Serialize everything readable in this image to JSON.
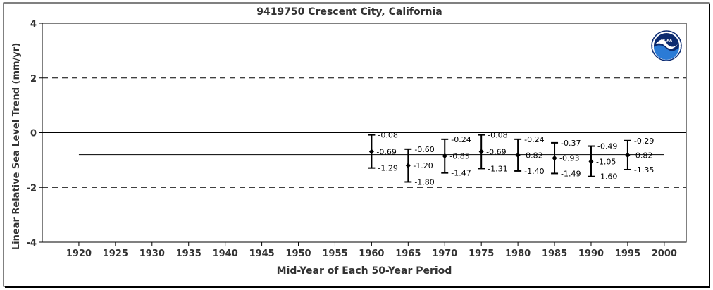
{
  "chart_data": {
    "type": "scatter",
    "title": "9419750 Crescent City, California",
    "xlabel": "Mid-Year of Each 50-Year Period",
    "ylabel": "Linear Relative Sea Level Trend (mm/yr)",
    "xlim": [
      1915,
      2003
    ],
    "ylim": [
      -4,
      4
    ],
    "xticks": [
      1920,
      1925,
      1930,
      1935,
      1940,
      1945,
      1950,
      1955,
      1960,
      1965,
      1970,
      1975,
      1980,
      1985,
      1990,
      1995,
      2000
    ],
    "yticks": [
      -4,
      -2,
      0,
      2,
      4
    ],
    "dashed_lines": [
      2,
      -2
    ],
    "zero_line": 0,
    "reference_trend": -0.8,
    "reference_range": [
      1920,
      2000
    ],
    "points": [
      {
        "x": 1960,
        "y": -0.69,
        "upper": -0.08,
        "lower": -1.29,
        "label_mid": "-0.69",
        "label_upper": "-0.08",
        "label_lower": "-1.29"
      },
      {
        "x": 1965,
        "y": -1.2,
        "upper": -0.6,
        "lower": -1.8,
        "label_mid": "-1.20",
        "label_upper": "-0.60",
        "label_lower": "-1.80"
      },
      {
        "x": 1970,
        "y": -0.85,
        "upper": -0.24,
        "lower": -1.47,
        "label_mid": "-0.85",
        "label_upper": "-0.24",
        "label_lower": "-1.47"
      },
      {
        "x": 1975,
        "y": -0.69,
        "upper": -0.08,
        "lower": -1.31,
        "label_mid": "-0.69",
        "label_upper": "-0.08",
        "label_lower": "-1.31"
      },
      {
        "x": 1980,
        "y": -0.82,
        "upper": -0.24,
        "lower": -1.4,
        "label_mid": "-0.82",
        "label_upper": "-0.24",
        "label_lower": "-1.40"
      },
      {
        "x": 1985,
        "y": -0.93,
        "upper": -0.37,
        "lower": -1.49,
        "label_mid": "-0.93",
        "label_upper": "-0.37",
        "label_lower": "-1.49"
      },
      {
        "x": 1990,
        "y": -1.05,
        "upper": -0.49,
        "lower": -1.6,
        "label_mid": "-1.05",
        "label_upper": "-0.49",
        "label_lower": "-1.60"
      },
      {
        "x": 1995,
        "y": -0.82,
        "upper": -0.29,
        "lower": -1.35,
        "label_mid": "-0.82",
        "label_upper": "-0.29",
        "label_lower": "-1.35"
      }
    ],
    "logo_text": "NOAA",
    "colors": {
      "logo_blue": "#1a5fb4",
      "logo_navy": "#0b2a6f",
      "axis": "#000000",
      "text": "#333333"
    }
  }
}
